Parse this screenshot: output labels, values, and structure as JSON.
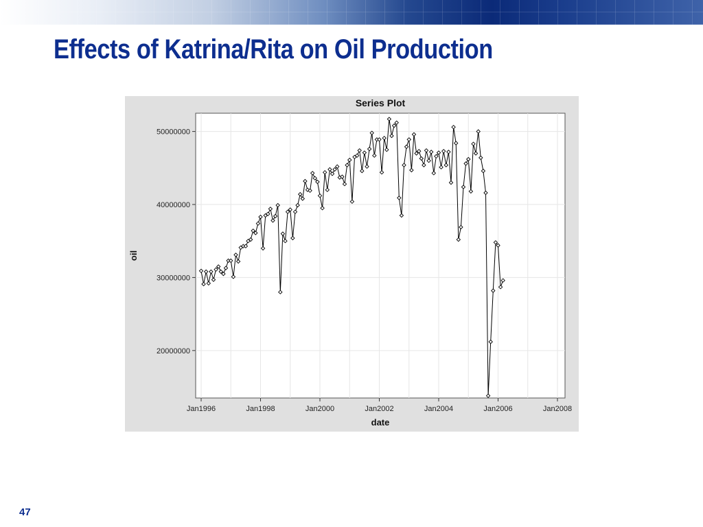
{
  "slide": {
    "title": "Effects of Katrina/Rita on Oil Production",
    "page_number": "47"
  },
  "colors": {
    "title": "#0d2e8f",
    "chart_frame": "#e0e0e0",
    "series_line": "#000000"
  },
  "chart_data": {
    "type": "line",
    "title": "Series Plot",
    "xlabel": "date",
    "ylabel": "oil",
    "xlim": [
      "1996-01",
      "2008-01"
    ],
    "ylim": [
      13500000,
      52500000
    ],
    "x_ticks": [
      {
        "date": "1996-01",
        "label": "Jan1996"
      },
      {
        "date": "1998-01",
        "label": "Jan1998"
      },
      {
        "date": "2000-01",
        "label": "Jan2000"
      },
      {
        "date": "2002-01",
        "label": "Jan2002"
      },
      {
        "date": "2004-01",
        "label": "Jan2004"
      },
      {
        "date": "2006-01",
        "label": "Jan2006"
      },
      {
        "date": "2008-01",
        "label": "Jan2008"
      }
    ],
    "y_ticks": [
      {
        "value": 20000000,
        "label": "20000000"
      },
      {
        "value": 30000000,
        "label": "30000000"
      },
      {
        "value": 40000000,
        "label": "40000000"
      },
      {
        "value": 50000000,
        "label": "50000000"
      }
    ],
    "grid": true,
    "marker": "diamond",
    "series": [
      {
        "x": [
          "1996-01",
          "1996-02",
          "1996-03",
          "1996-04",
          "1996-05",
          "1996-06",
          "1996-07",
          "1996-08",
          "1996-09",
          "1996-10",
          "1996-11",
          "1996-12",
          "1997-01",
          "1997-02",
          "1997-03",
          "1997-04",
          "1997-05",
          "1997-06",
          "1997-07",
          "1997-08",
          "1997-09",
          "1997-10",
          "1997-11",
          "1997-12",
          "1998-01",
          "1998-02",
          "1998-03",
          "1998-04",
          "1998-05",
          "1998-06",
          "1998-07",
          "1998-08",
          "1998-09",
          "1998-10",
          "1998-11",
          "1998-12",
          "1999-01",
          "1999-02",
          "1999-03",
          "1999-04",
          "1999-05",
          "1999-06",
          "1999-07",
          "1999-08",
          "1999-09",
          "1999-10",
          "1999-11",
          "1999-12",
          "2000-01",
          "2000-02",
          "2000-03",
          "2000-04",
          "2000-05",
          "2000-06",
          "2000-07",
          "2000-08",
          "2000-09",
          "2000-10",
          "2000-11",
          "2000-12",
          "2001-01",
          "2001-02",
          "2001-03",
          "2001-04",
          "2001-05",
          "2001-06",
          "2001-07",
          "2001-08",
          "2001-09",
          "2001-10",
          "2001-11",
          "2001-12",
          "2002-01",
          "2002-02",
          "2002-03",
          "2002-04",
          "2002-05",
          "2002-06",
          "2002-07",
          "2002-08",
          "2002-09",
          "2002-10",
          "2002-11",
          "2002-12",
          "2003-01",
          "2003-02",
          "2003-03",
          "2003-04",
          "2003-05",
          "2003-06",
          "2003-07",
          "2003-08",
          "2003-09",
          "2003-10",
          "2003-11",
          "2003-12",
          "2004-01",
          "2004-02",
          "2004-03",
          "2004-04",
          "2004-05",
          "2004-06",
          "2004-07",
          "2004-08",
          "2004-09",
          "2004-10",
          "2004-11",
          "2004-12",
          "2005-01",
          "2005-02",
          "2005-03",
          "2005-04",
          "2005-05",
          "2005-06",
          "2005-07",
          "2005-08",
          "2005-09",
          "2005-10",
          "2005-11",
          "2005-12",
          "2006-01",
          "2006-02",
          "2006-03"
        ],
        "y": [
          30900000,
          29100000,
          30800000,
          29200000,
          30800000,
          29700000,
          31100000,
          31500000,
          30800000,
          30500000,
          31300000,
          32300000,
          32300000,
          30100000,
          33100000,
          32200000,
          34100000,
          34300000,
          34300000,
          35000000,
          35200000,
          36400000,
          36100000,
          37400000,
          38300000,
          34000000,
          38500000,
          38700000,
          39400000,
          37800000,
          38400000,
          39900000,
          28000000,
          36000000,
          35000000,
          39000000,
          39300000,
          35400000,
          39000000,
          39900000,
          41400000,
          40800000,
          43200000,
          42000000,
          41900000,
          44300000,
          43600000,
          43100000,
          41200000,
          39500000,
          44400000,
          42000000,
          44800000,
          44200000,
          44800000,
          45200000,
          43700000,
          43800000,
          42800000,
          45400000,
          46100000,
          40400000,
          46500000,
          46700000,
          47400000,
          44600000,
          47100000,
          45200000,
          47600000,
          49800000,
          46700000,
          48900000,
          48900000,
          44400000,
          49100000,
          47500000,
          51700000,
          49400000,
          50800000,
          51200000,
          40900000,
          38500000,
          45400000,
          47900000,
          48900000,
          44700000,
          49600000,
          47000000,
          47300000,
          46300000,
          45400000,
          47400000,
          46000000,
          47200000,
          44300000,
          46600000,
          47100000,
          45100000,
          47300000,
          45400000,
          47200000,
          43000000,
          50600000,
          48400000,
          35200000,
          36900000,
          42400000,
          45600000,
          46200000,
          41800000,
          48300000,
          47000000,
          50000000,
          46400000,
          44600000,
          41600000,
          13800000,
          21200000,
          28200000,
          34800000,
          34400000,
          28700000,
          29600000
        ]
      }
    ]
  }
}
